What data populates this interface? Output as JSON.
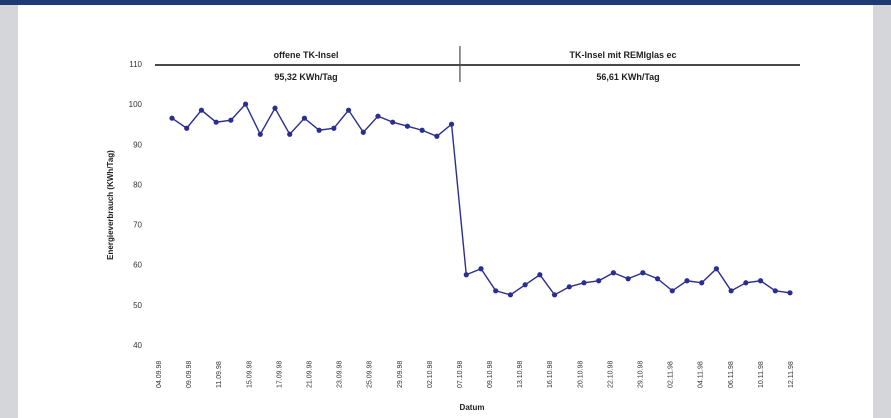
{
  "colors": {
    "top_bar": "#1f3b73",
    "side_panels": "#d5d6d9",
    "series": "#2a2f8f",
    "frame": "#4a4a4a"
  },
  "chart_data": {
    "type": "line",
    "title": "",
    "xlabel": "Datum",
    "ylabel": "Energieverbrauch (KWh/Tag)",
    "ylim": [
      40,
      115
    ],
    "yticks": [
      40,
      50,
      60,
      70,
      80,
      90,
      100,
      110
    ],
    "xtick_labels": [
      "04.09.98",
      "09.09.98",
      "11.09.98",
      "15.09.98",
      "17.09.98",
      "21.09.98",
      "23.09.98",
      "25.09.98",
      "29.09.98",
      "02.10.98",
      "07.10.98",
      "09.10.98",
      "13.10.98",
      "16.10.98",
      "20.10.98",
      "22.10.98",
      "29.10.98",
      "02.11.98",
      "04.11.98",
      "06.11.98",
      "10.11.98",
      "12.11.98"
    ],
    "segments": [
      {
        "title": "offene TK-Insel",
        "value": "95,32 KWh/Tag"
      },
      {
        "title": "TK-Insel mit REMIglas ec",
        "value": "56,61 KWh/Tag"
      }
    ],
    "grid": false,
    "series": [
      {
        "values": [
          96.5,
          94,
          98.5,
          95.5,
          96,
          100,
          92.5,
          99,
          92.5,
          96.5,
          93.5,
          94,
          98.5,
          93,
          97,
          95.5,
          94.5,
          93.5,
          92,
          95,
          57.5,
          59,
          53.5,
          52.5,
          55,
          57.5,
          52.5,
          54.5,
          55.5,
          56,
          58,
          56.5,
          58,
          56.5,
          53.5,
          56,
          55.5,
          59,
          53.5,
          55.5,
          56,
          53.5,
          53
        ]
      }
    ]
  }
}
